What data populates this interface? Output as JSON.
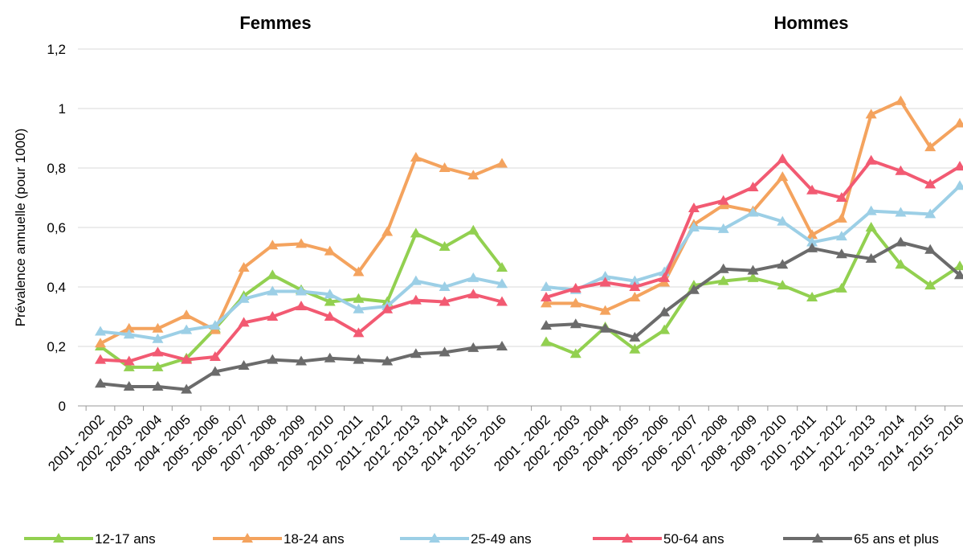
{
  "chart_data": {
    "type": "line",
    "ylabel": "Prévalence annuelle (pour 1000)",
    "ylim": [
      0,
      1.2
    ],
    "yticks": [
      0,
      {
        "value": 0.2,
        "label": "0,2"
      },
      {
        "value": 0.4,
        "label": "0,4"
      },
      {
        "value": 0.6,
        "label": "0,6"
      },
      {
        "value": 0.8,
        "label": "0,8"
      },
      1,
      {
        "value": 1.2,
        "label": "1,2"
      }
    ],
    "grid": true,
    "legend": "bottom",
    "categories": [
      "2001 - 2002",
      "2002 - 2003",
      "2003 - 2004",
      "2004 - 2005",
      "2005 - 2006",
      "2006 - 2007",
      "2007 - 2008",
      "2008 - 2009",
      "2009 - 2010",
      "2010 - 2011",
      "2011 - 2012",
      "2012 - 2013",
      "2013 - 2014",
      "2014 - 2015",
      "2015 - 2016"
    ],
    "series": [
      {
        "name": "12-17 ans",
        "color": "#92d050"
      },
      {
        "name": "18-24 ans",
        "color": "#f4a35e"
      },
      {
        "name": "25-49 ans",
        "color": "#9ccfe6"
      },
      {
        "name": "50-64 ans",
        "color": "#f25a72"
      },
      {
        "name": "65 ans et plus",
        "color": "#6b6b6b"
      }
    ],
    "panels": [
      {
        "title": "Femmes",
        "values": [
          [
            0.2,
            0.13,
            0.13,
            0.16,
            0.26,
            0.37,
            0.44,
            0.39,
            0.35,
            0.36,
            0.35,
            0.58,
            0.535,
            0.59,
            0.465
          ],
          [
            0.21,
            0.26,
            0.26,
            0.305,
            0.255,
            0.465,
            0.54,
            0.545,
            0.52,
            0.45,
            0.585,
            0.835,
            0.8,
            0.775,
            0.815
          ],
          [
            0.25,
            0.24,
            0.225,
            0.255,
            0.27,
            0.36,
            0.385,
            0.385,
            0.375,
            0.325,
            0.335,
            0.42,
            0.4,
            0.43,
            0.41
          ],
          [
            0.155,
            0.15,
            0.18,
            0.155,
            0.165,
            0.28,
            0.3,
            0.335,
            0.3,
            0.245,
            0.325,
            0.355,
            0.35,
            0.375,
            0.35
          ],
          [
            0.075,
            0.065,
            0.065,
            0.055,
            0.115,
            0.135,
            0.155,
            0.15,
            0.16,
            0.155,
            0.15,
            0.175,
            0.18,
            0.195,
            0.2
          ]
        ]
      },
      {
        "title": "Hommes",
        "values": [
          [
            0.215,
            0.175,
            0.265,
            0.19,
            0.255,
            0.405,
            0.42,
            0.43,
            0.405,
            0.365,
            0.395,
            0.6,
            0.475,
            0.405,
            0.47
          ],
          [
            0.345,
            0.345,
            0.32,
            0.365,
            0.415,
            0.61,
            0.675,
            0.655,
            0.77,
            0.575,
            0.63,
            0.98,
            1.025,
            0.87,
            0.95
          ],
          [
            0.4,
            0.39,
            0.435,
            0.42,
            0.45,
            0.6,
            0.595,
            0.65,
            0.62,
            0.55,
            0.57,
            0.655,
            0.65,
            0.645,
            0.74
          ],
          [
            0.365,
            0.395,
            0.415,
            0.4,
            0.43,
            0.665,
            0.69,
            0.735,
            0.83,
            0.725,
            0.7,
            0.825,
            0.79,
            0.745,
            0.805
          ],
          [
            0.27,
            0.275,
            0.26,
            0.23,
            0.315,
            0.39,
            0.46,
            0.455,
            0.475,
            0.53,
            0.51,
            0.495,
            0.55,
            0.525,
            0.44
          ]
        ]
      }
    ]
  }
}
